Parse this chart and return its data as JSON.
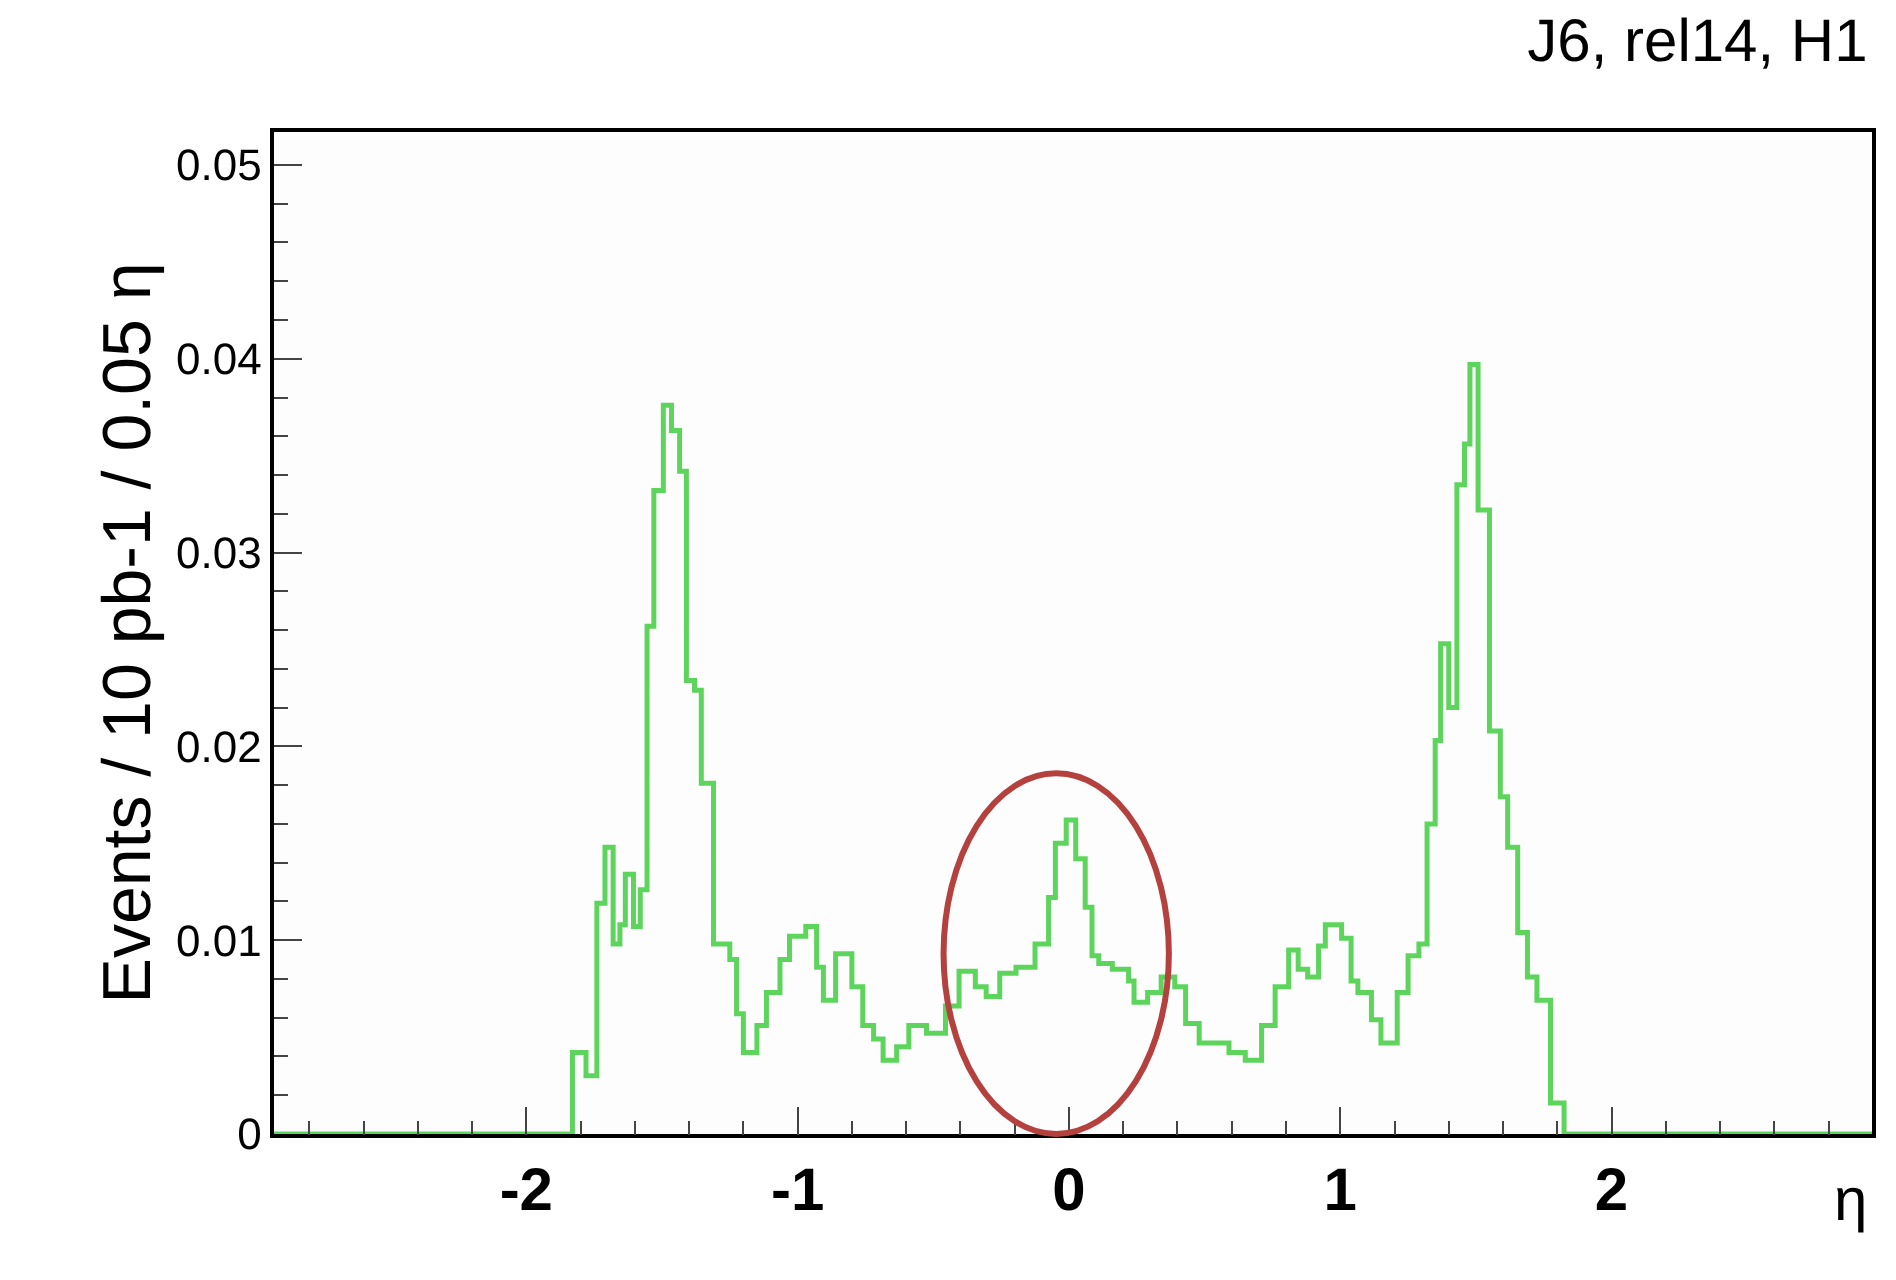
{
  "chart_data": {
    "type": "histogram",
    "title": "J6, rel14, H1",
    "xlabel": "η",
    "ylabel": "Events / 10 pb-1 / 0.05 η",
    "color": "#5dd55d",
    "bins": [
      -2.93,
      -1.83,
      -1.78,
      -1.74,
      -1.71,
      -1.68,
      -1.655,
      -1.635,
      -1.605,
      -1.58,
      -1.555,
      -1.53,
      -1.495,
      -1.465,
      -1.435,
      -1.41,
      -1.38,
      -1.355,
      -1.31,
      -1.25,
      -1.225,
      -1.2,
      -1.15,
      -1.115,
      -1.065,
      -1.03,
      -0.97,
      -0.93,
      -0.905,
      -0.86,
      -0.8,
      -0.76,
      -0.72,
      -0.685,
      -0.635,
      -0.59,
      -0.525,
      -0.455,
      -0.405,
      -0.345,
      -0.305,
      -0.255,
      -0.195,
      -0.125,
      -0.075,
      -0.05,
      -0.01,
      0.025,
      0.06,
      0.085,
      0.11,
      0.16,
      0.22,
      0.24,
      0.29,
      0.34,
      0.39,
      0.43,
      0.48,
      0.59,
      0.65,
      0.71,
      0.76,
      0.81,
      0.845,
      0.88,
      0.92,
      0.945,
      1.005,
      1.04,
      1.065,
      1.115,
      1.15,
      1.21,
      1.25,
      1.29,
      1.32,
      1.35,
      1.37,
      1.4,
      1.43,
      1.458,
      1.478,
      1.508,
      1.55,
      1.59,
      1.617,
      1.654,
      1.69,
      1.725,
      1.775,
      1.825,
      2.96
    ],
    "values": [
      0,
      0.0042,
      0.003,
      0.0119,
      0.0148,
      0.0098,
      0.0108,
      0.0134,
      0.0107,
      0.0126,
      0.0262,
      0.0332,
      0.0376,
      0.0363,
      0.0342,
      0.0234,
      0.0229,
      0.0181,
      0.0098,
      0.009,
      0.0062,
      0.0042,
      0.0056,
      0.0073,
      0.009,
      0.0102,
      0.0107,
      0.0086,
      0.0069,
      0.0093,
      0.0076,
      0.0056,
      0.0049,
      0.0038,
      0.0045,
      0.0056,
      0.0052,
      0.0066,
      0.0084,
      0.0076,
      0.0071,
      0.0083,
      0.0086,
      0.0098,
      0.0122,
      0.015,
      0.0162,
      0.0142,
      0.0117,
      0.0092,
      0.0088,
      0.0085,
      0.0079,
      0.0068,
      0.0073,
      0.0081,
      0.0076,
      0.0057,
      0.0047,
      0.0042,
      0.0038,
      0.0056,
      0.0076,
      0.0095,
      0.0085,
      0.0081,
      0.0097,
      0.0108,
      0.0101,
      0.0079,
      0.0073,
      0.0059,
      0.0047,
      0.0073,
      0.0092,
      0.0098,
      0.016,
      0.0203,
      0.0253,
      0.022,
      0.0335,
      0.0356,
      0.0397,
      0.0322,
      0.0208,
      0.0174,
      0.0148,
      0.0104,
      0.0081,
      0.0069,
      0.0016,
      0
    ],
    "xlim": [
      -2.93,
      2.96
    ],
    "xticks": [
      -2,
      -1,
      0,
      1,
      2
    ],
    "ylim": [
      0,
      0.0517
    ],
    "yticks": [
      {
        "value": 0,
        "label": "0"
      },
      0.01,
      0.02,
      0.03,
      0.04,
      0.05
    ]
  }
}
